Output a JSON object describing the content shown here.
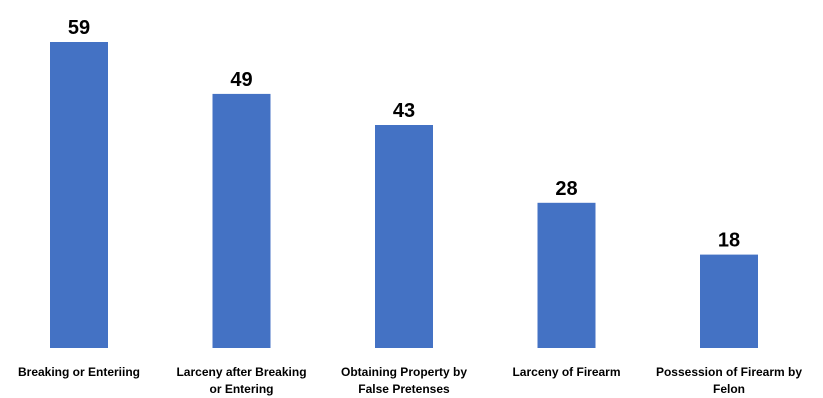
{
  "chart_data": {
    "type": "bar",
    "title": "",
    "xlabel": "",
    "ylabel": "",
    "categories": [
      "Breaking or Enteriing",
      "Larceny after Breaking or Entering",
      "Obtaining Property by False Pretenses",
      "Larceny of Firearm",
      "Possession of Firearm by Felon"
    ],
    "category_lines": [
      [
        "Breaking or Enteriing"
      ],
      [
        "Larceny after Breaking",
        "or Entering"
      ],
      [
        "Obtaining Property by",
        "False Pretenses"
      ],
      [
        "Larceny of Firearm"
      ],
      [
        "Possession of Firearm by",
        "Felon"
      ]
    ],
    "values": [
      59,
      49,
      43,
      28,
      18
    ],
    "ylim": [
      0,
      59
    ],
    "grid": false,
    "legend": false,
    "bar_color": "#4472C4"
  }
}
